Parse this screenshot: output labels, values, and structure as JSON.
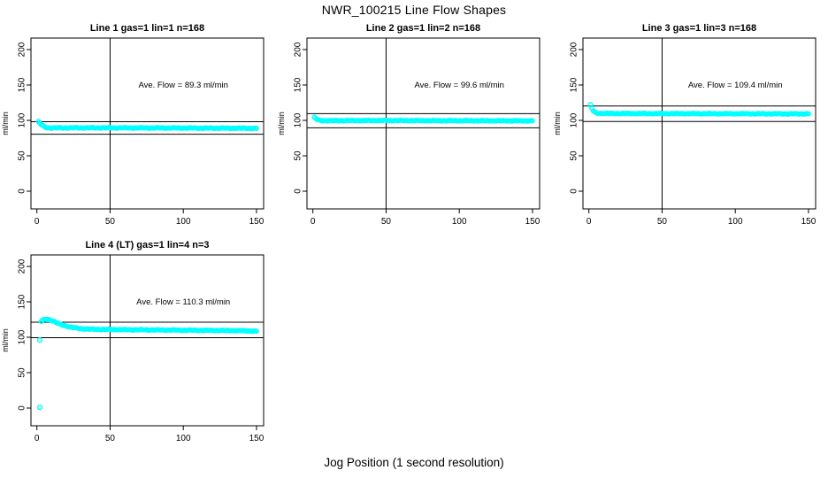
{
  "page": {
    "main_title": "NWR_100215  Line Flow Shapes",
    "x_axis_label": "Jog Position (1 second resolution)"
  },
  "colors": {
    "background": "#FFFFFF",
    "axis": "#000000",
    "point": "#00FFFF"
  },
  "chart_data": [
    {
      "type": "scatter",
      "title": "Line 1 gas=1 lin=1 n=168",
      "annotation": "Ave. Flow =  89.3  ml/min",
      "ave_flow_ml_min": 89.3,
      "ylabel": "ml/min",
      "x_ticks": [
        0,
        50,
        100,
        150
      ],
      "y_ticks": [
        0,
        50,
        100,
        150,
        200
      ],
      "ref_vline_x": 50,
      "ref_hlines": [
        98.2,
        80.4
      ],
      "grid_pos": {
        "row": 0,
        "col": 0
      },
      "series": {
        "marker": "open-circle",
        "x_range": [
          1,
          150
        ],
        "x_step": 1,
        "keypoints": [
          [
            1,
            98
          ],
          [
            2,
            96
          ],
          [
            3,
            94
          ],
          [
            4,
            92.5
          ],
          [
            5,
            91.2
          ],
          [
            6,
            90.3
          ],
          [
            7,
            89.7
          ],
          [
            9,
            89.3
          ],
          [
            20,
            89.4
          ],
          [
            40,
            89.5
          ],
          [
            60,
            89.4
          ],
          [
            80,
            89.3
          ],
          [
            100,
            89.2
          ],
          [
            120,
            89.0
          ],
          [
            140,
            88.9
          ],
          [
            150,
            88.7
          ]
        ],
        "isolated_points": []
      }
    },
    {
      "type": "scatter",
      "title": "Line 2 gas=1 lin=2 n=168",
      "annotation": "Ave. Flow =  99.6  ml/min",
      "ave_flow_ml_min": 99.6,
      "ylabel": "ml/min",
      "x_ticks": [
        0,
        50,
        100,
        150
      ],
      "y_ticks": [
        0,
        50,
        100,
        150,
        200
      ],
      "ref_vline_x": 50,
      "ref_hlines": [
        109.6,
        89.6
      ],
      "grid_pos": {
        "row": 0,
        "col": 1
      },
      "series": {
        "marker": "open-circle",
        "x_range": [
          1,
          150
        ],
        "x_step": 1,
        "keypoints": [
          [
            1,
            104
          ],
          [
            2,
            102.5
          ],
          [
            3,
            101.2
          ],
          [
            4,
            100.4
          ],
          [
            5,
            99.9
          ],
          [
            7,
            99.6
          ],
          [
            20,
            99.7
          ],
          [
            50,
            99.8
          ],
          [
            80,
            99.6
          ],
          [
            110,
            99.5
          ],
          [
            140,
            99.4
          ],
          [
            150,
            99.4
          ]
        ],
        "isolated_points": []
      }
    },
    {
      "type": "scatter",
      "title": "Line 3 gas=1 lin=3 n=168",
      "annotation": "Ave. Flow =  109.4  ml/min",
      "ave_flow_ml_min": 109.4,
      "ylabel": "ml/min",
      "x_ticks": [
        0,
        50,
        100,
        150
      ],
      "y_ticks": [
        0,
        50,
        100,
        150,
        200
      ],
      "ref_vline_x": 50,
      "ref_hlines": [
        120.3,
        98.5
      ],
      "grid_pos": {
        "row": 0,
        "col": 2
      },
      "series": {
        "marker": "open-circle",
        "x_range": [
          2,
          150
        ],
        "x_step": 1,
        "keypoints": [
          [
            2,
            117
          ],
          [
            3,
            113.5
          ],
          [
            4,
            111.5
          ],
          [
            5,
            110.5
          ],
          [
            7,
            109.9
          ],
          [
            15,
            109.7
          ],
          [
            40,
            109.6
          ],
          [
            70,
            109.5
          ],
          [
            100,
            109.4
          ],
          [
            130,
            109.3
          ],
          [
            150,
            109.2
          ]
        ],
        "isolated_points": [
          [
            1,
            122
          ]
        ]
      }
    },
    {
      "type": "scatter",
      "title": "Line 4 (LT) gas=1 lin=4 n=3",
      "annotation": "Ave. Flow =  110.3  ml/min",
      "ave_flow_ml_min": 110.3,
      "ylabel": "ml/min",
      "x_ticks": [
        0,
        50,
        100,
        150
      ],
      "y_ticks": [
        0,
        50,
        100,
        150,
        200
      ],
      "ref_vline_x": 50,
      "ref_hlines": [
        121.3,
        99.3
      ],
      "grid_pos": {
        "row": 1,
        "col": 0
      },
      "series": {
        "marker": "open-circle",
        "x_range": [
          3,
          150
        ],
        "x_step": 1,
        "keypoints": [
          [
            3,
            122.5
          ],
          [
            4,
            124
          ],
          [
            5,
            125
          ],
          [
            6,
            125.5
          ],
          [
            8,
            125.2
          ],
          [
            10,
            123.8
          ],
          [
            12,
            121.8
          ],
          [
            14,
            120
          ],
          [
            16,
            118.4
          ],
          [
            18,
            117
          ],
          [
            20,
            115.8
          ],
          [
            23,
            114.3
          ],
          [
            26,
            113.2
          ],
          [
            29,
            112.4
          ],
          [
            33,
            111.7
          ],
          [
            38,
            111.2
          ],
          [
            45,
            111
          ],
          [
            55,
            110.8
          ],
          [
            65,
            110.6
          ],
          [
            75,
            110.4
          ],
          [
            85,
            110.2
          ],
          [
            95,
            110.1
          ],
          [
            105,
            109.9
          ],
          [
            115,
            109.7
          ],
          [
            125,
            109.6
          ],
          [
            135,
            109.4
          ],
          [
            143,
            109.0
          ],
          [
            150,
            108.6
          ]
        ],
        "isolated_points": [
          [
            2,
            96
          ],
          [
            2,
            1
          ]
        ]
      }
    }
  ]
}
